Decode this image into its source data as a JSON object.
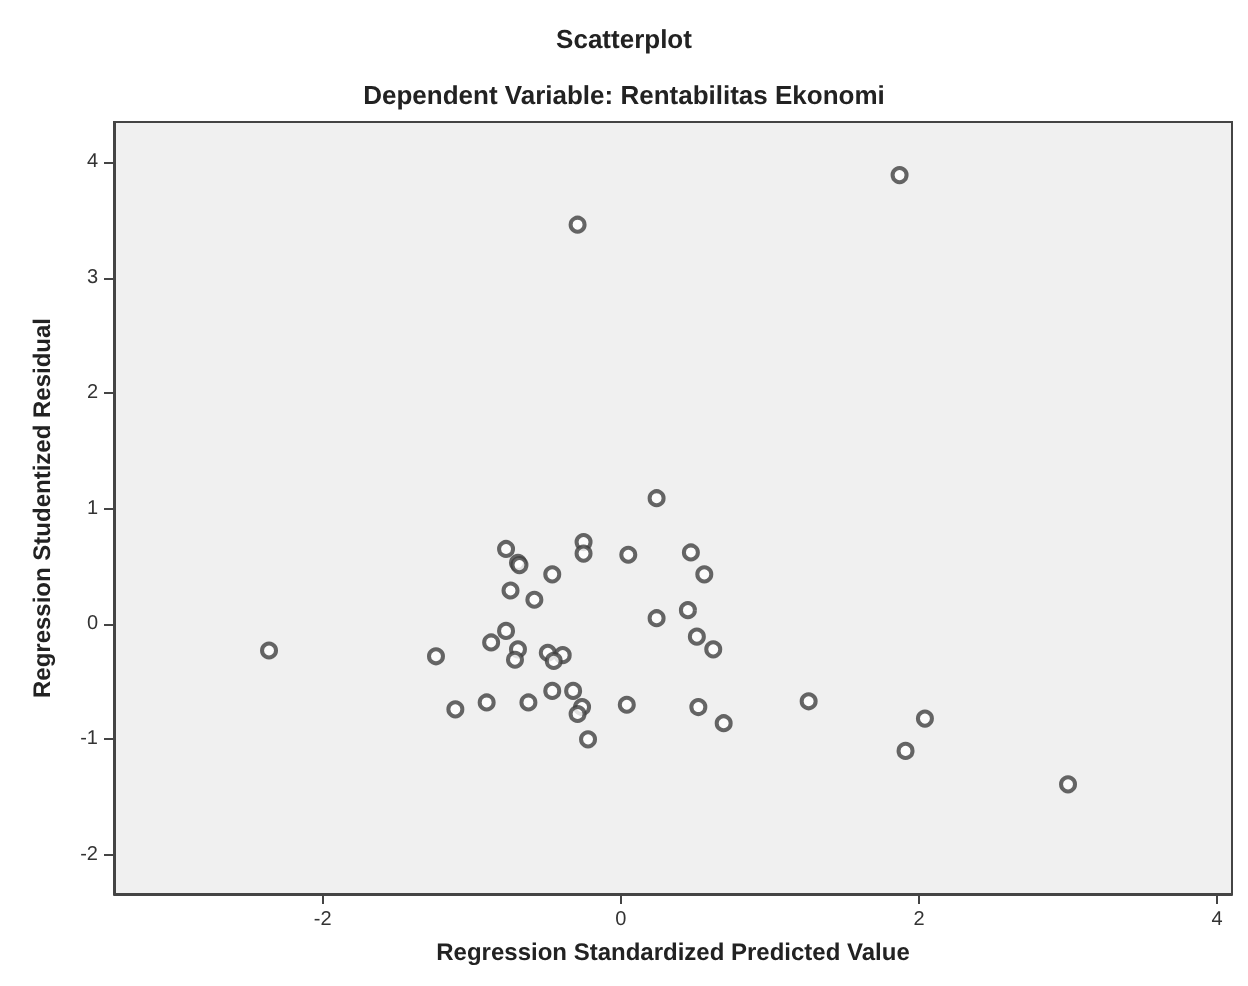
{
  "chart_data": {
    "type": "scatter",
    "title": "Scatterplot",
    "subtitle": "Dependent Variable: Rentabilitas Ekonomi",
    "xlabel": "Regression Standardized Predicted Value",
    "ylabel": "Regression Studentized Residual",
    "x": [
      1.87,
      -0.29,
      0.24,
      -0.77,
      -0.69,
      -0.68,
      -0.25,
      -0.25,
      0.05,
      0.47,
      0.56,
      -0.46,
      -0.74,
      -0.58,
      0.24,
      0.45,
      -0.77,
      -0.87,
      0.51,
      0.62,
      -1.24,
      -0.69,
      -0.71,
      -0.49,
      -0.39,
      -0.45,
      -0.46,
      -0.32,
      -1.11,
      -0.9,
      -0.62,
      -0.26,
      -0.29,
      0.04,
      0.52,
      0.69,
      -0.22,
      1.26,
      2.04,
      1.91,
      3.0,
      -2.36
    ],
    "values": [
      3.89,
      3.46,
      1.09,
      0.65,
      0.53,
      0.51,
      0.71,
      0.61,
      0.6,
      0.62,
      0.43,
      0.43,
      0.29,
      0.21,
      0.05,
      0.12,
      -0.06,
      -0.16,
      -0.11,
      -0.22,
      -0.28,
      -0.22,
      -0.31,
      -0.25,
      -0.27,
      -0.32,
      -0.58,
      -0.58,
      -0.74,
      -0.68,
      -0.68,
      -0.72,
      -0.78,
      -0.7,
      -0.72,
      -0.86,
      -1.0,
      -0.67,
      -0.82,
      -1.1,
      -1.39,
      -0.23
    ],
    "color": "#404040",
    "marker": "circle",
    "grid": false,
    "xlim": [
      -3.4,
      4.1
    ],
    "xticks": [
      -2,
      0,
      2,
      4
    ],
    "ylim": [
      -2.34,
      4.35
    ],
    "yticks": [
      -2,
      -1,
      0,
      1,
      2,
      3,
      4
    ]
  }
}
